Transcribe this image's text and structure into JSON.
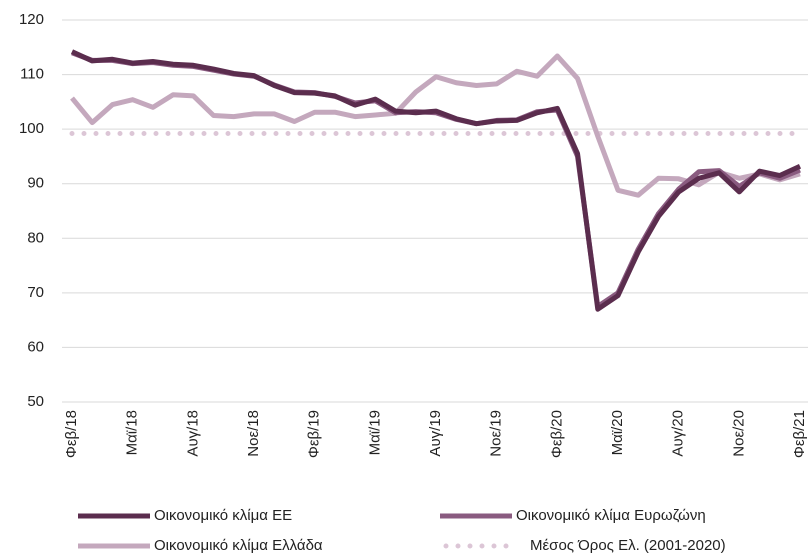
{
  "chart_data": {
    "type": "line",
    "categories": [
      "Φεβ/18",
      null,
      null,
      "Μαϊ/18",
      null,
      null,
      "Αυγ/18",
      null,
      null,
      "Νοε/18",
      null,
      null,
      "Φεβ/19",
      null,
      null,
      "Μαϊ/19",
      null,
      null,
      "Αυγ/19",
      null,
      null,
      "Νοε/19",
      null,
      null,
      "Φεβ/20",
      null,
      null,
      "Μαϊ/20",
      null,
      null,
      "Αυγ/20",
      null,
      null,
      "Νοε/20",
      null,
      null,
      "Φεβ/21"
    ],
    "series": [
      {
        "name": "Οικονομικό κλίμα ΕΕ",
        "color": "#5b2d4e",
        "style": "solid",
        "values": [
          114.2,
          112.5,
          112.8,
          112.1,
          112.4,
          111.9,
          111.7,
          111.0,
          110.2,
          109.8,
          108.0,
          106.7,
          106.6,
          106.1,
          104.4,
          105.5,
          103.3,
          103.0,
          103.3,
          101.9,
          101.0,
          101.5,
          101.6,
          103.0,
          103.8,
          95.5,
          67.0,
          69.5,
          77.5,
          84.0,
          88.5,
          91.0,
          92.0,
          88.5,
          92.3,
          91.5,
          93.2
        ]
      },
      {
        "name": "Οικονομικό κλίμα Ευρωζώνη",
        "color": "#8a5b80",
        "style": "solid",
        "values": [
          114.0,
          112.6,
          112.6,
          112.0,
          112.2,
          111.7,
          111.5,
          110.8,
          110.1,
          109.7,
          108.1,
          106.8,
          106.7,
          106.0,
          104.8,
          105.2,
          103.0,
          103.2,
          103.0,
          101.8,
          101.0,
          101.6,
          101.7,
          103.2,
          103.5,
          95.0,
          67.5,
          70.0,
          78.0,
          84.5,
          89.0,
          92.2,
          92.4,
          89.5,
          92.0,
          91.0,
          92.5
        ]
      },
      {
        "name": "Οικονομικό κλίμα Ελλάδα",
        "color": "#c4a8bd",
        "style": "solid",
        "values": [
          105.7,
          101.2,
          104.5,
          105.4,
          104.0,
          106.3,
          106.1,
          102.5,
          102.3,
          102.8,
          102.8,
          101.4,
          103.1,
          103.1,
          102.3,
          102.6,
          102.9,
          106.8,
          109.6,
          108.5,
          108.0,
          108.3,
          110.6,
          109.7,
          113.4,
          109.3,
          98.7,
          88.8,
          87.9,
          91.0,
          90.9,
          89.8,
          92.1,
          91.0,
          91.8,
          90.7,
          91.8
        ]
      },
      {
        "name": "Μέσος Όρος Ελ. (2001-2020)",
        "color": "#dcc6d6",
        "style": "dotted",
        "values": [
          99.2,
          99.2,
          99.2,
          99.2,
          99.2,
          99.2,
          99.2,
          99.2,
          99.2,
          99.2,
          99.2,
          99.2,
          99.2,
          99.2,
          99.2,
          99.2,
          99.2,
          99.2,
          99.2,
          99.2,
          99.2,
          99.2,
          99.2,
          99.2,
          99.2,
          99.2,
          99.2,
          99.2,
          99.2,
          99.2,
          99.2,
          99.2,
          99.2,
          99.2,
          99.2,
          99.2,
          99.2
        ]
      }
    ],
    "ylim": [
      50,
      120
    ],
    "yticks": [
      50,
      60,
      70,
      80,
      90,
      100,
      110,
      120
    ],
    "grid": true
  }
}
